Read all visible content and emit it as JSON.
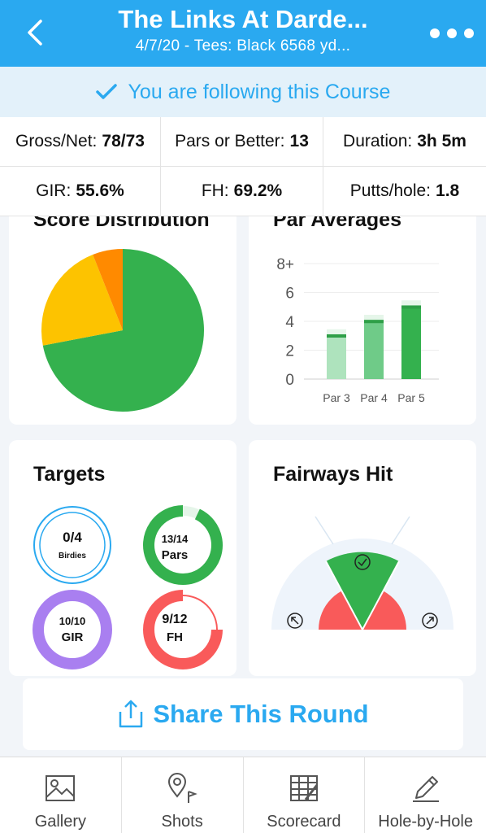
{
  "header": {
    "title": "The Links At Darde...",
    "subtitle": "4/7/20 - Tees: Black 6568 yd...",
    "back_icon": "chevron-left-icon",
    "more_icon": "more-horizontal-icon"
  },
  "follow": {
    "text": "You are following this Course"
  },
  "stats": {
    "gross_net_label": "Gross/Net:",
    "gross_net_value": "78/73",
    "pars_label": "Pars or Better:",
    "pars_value": "13",
    "duration_label": "Duration:",
    "duration_value": "3h 5m",
    "gir_label": "GIR:",
    "gir_value": "55.6%",
    "fh_label": "FH:",
    "fh_value": "69.2%",
    "putts_label": "Putts/hole:",
    "putts_value": "1.8"
  },
  "score_distribution": {
    "title": "Score Distribution",
    "chart_data": {
      "type": "pie",
      "slices": [
        {
          "value": 72,
          "color": "#34b14e"
        },
        {
          "value": 22,
          "color": "#fdc300"
        },
        {
          "value": 6,
          "color": "#ff8a00"
        }
      ]
    }
  },
  "par_averages": {
    "title": "Par Averages",
    "chart_data": {
      "type": "bar",
      "categories": [
        "Par 3",
        "Par 4",
        "Par 5"
      ],
      "values": [
        3.1,
        4.1,
        5.1
      ],
      "ylim": [
        0,
        8
      ],
      "yticks": [
        "0",
        "2",
        "4",
        "6",
        "8+"
      ],
      "colors": [
        "#aee3bd",
        "#6fcb88",
        "#34b14e"
      ]
    }
  },
  "targets": {
    "title": "Targets",
    "items": [
      {
        "value": "0/4",
        "label": "Birdies",
        "fraction": 0.0,
        "color": "#2aa9f0"
      },
      {
        "value": "13/14",
        "label": "Pars",
        "fraction": 0.93,
        "color": "#34b14e"
      },
      {
        "value": "10/10",
        "label": "GIR",
        "fraction": 1.0,
        "color": "#a97ff0"
      },
      {
        "value": "9/12",
        "label": "FH",
        "fraction": 0.75,
        "color": "#f95a5a"
      }
    ]
  },
  "fairways": {
    "title": "Fairways Hit"
  },
  "share": {
    "label": "Share This Round",
    "icon": "share-icon"
  },
  "tabs": [
    {
      "label": "Gallery",
      "icon": "image-icon"
    },
    {
      "label": "Shots",
      "icon": "map-pin-icon"
    },
    {
      "label": "Scorecard",
      "icon": "scorecard-icon"
    },
    {
      "label": "Hole-by-Hole",
      "icon": "pencil-icon"
    }
  ]
}
